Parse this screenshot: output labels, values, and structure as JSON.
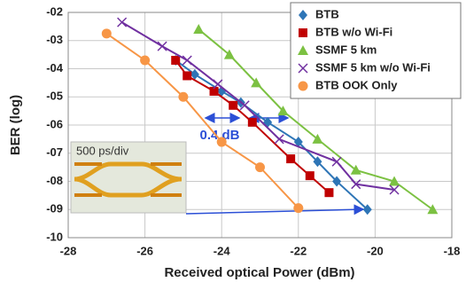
{
  "chart_data": {
    "type": "line",
    "x_label": "Received optical Power (dBm)",
    "y_label": "BER (log)",
    "xlim": [
      -28,
      -18
    ],
    "xticks": [
      -28,
      -26,
      -24,
      -22,
      -20,
      -18
    ],
    "ylim": [
      -10,
      -2
    ],
    "yticks": [
      {
        "value": -2,
        "label": "-02"
      },
      {
        "value": -3,
        "label": "-03"
      },
      {
        "value": -4,
        "label": "-04"
      },
      {
        "value": -5,
        "label": "-05"
      },
      {
        "value": -6,
        "label": "-06"
      },
      {
        "value": -7,
        "label": "-07"
      },
      {
        "value": -8,
        "label": "-08"
      },
      {
        "value": -9,
        "label": "-09"
      },
      -10
    ],
    "grid": true,
    "legend": "top-right",
    "annotations": [
      "0.4 dB",
      "500 ps/div"
    ],
    "series": [
      {
        "name": "BTB",
        "color": "#2e75b6",
        "marker": "diamond",
        "x": [
          -25.2,
          -24.7,
          -24.0,
          -23.5,
          -22.8,
          -22.0,
          -21.5,
          -21.0,
          -20.2
        ],
        "values": [
          -3.7,
          -4.2,
          -4.8,
          -5.2,
          -5.9,
          -6.6,
          -7.3,
          -8.0,
          -9.0
        ]
      },
      {
        "name": "BTB w/o Wi-Fi",
        "color": "#c00000",
        "marker": "square",
        "x": [
          -25.2,
          -24.9,
          -24.2,
          -23.7,
          -23.2,
          -22.2,
          -21.7,
          -21.2
        ],
        "values": [
          -3.7,
          -4.25,
          -4.8,
          -5.3,
          -5.9,
          -7.2,
          -7.8,
          -8.4
        ]
      },
      {
        "name": "SSMF 5 km",
        "color": "#7cc142",
        "marker": "triangle",
        "x": [
          -24.6,
          -23.8,
          -23.1,
          -22.4,
          -21.5,
          -20.5,
          -19.5,
          -18.5
        ],
        "values": [
          -2.6,
          -3.5,
          -4.5,
          -5.5,
          -6.5,
          -7.6,
          -8.0,
          -9.0
        ]
      },
      {
        "name": "SSMF 5 km w/o Wi-Fi",
        "color": "#7030a0",
        "marker": "x",
        "x": [
          -26.6,
          -25.55,
          -24.9,
          -24.1,
          -23.4,
          -22.5,
          -21.0,
          -20.5,
          -19.5
        ],
        "values": [
          -2.35,
          -3.2,
          -3.7,
          -4.55,
          -5.3,
          -6.5,
          -7.3,
          -8.1,
          -8.3
        ]
      },
      {
        "name": "BTB OOK Only",
        "color": "#f79646",
        "marker": "circle",
        "x": [
          -27.0,
          -26.0,
          -25.0,
          -24.0,
          -23.0,
          -22.0
        ],
        "values": [
          -2.75,
          -3.7,
          -5.0,
          -6.6,
          -7.5,
          -8.95
        ]
      }
    ]
  }
}
